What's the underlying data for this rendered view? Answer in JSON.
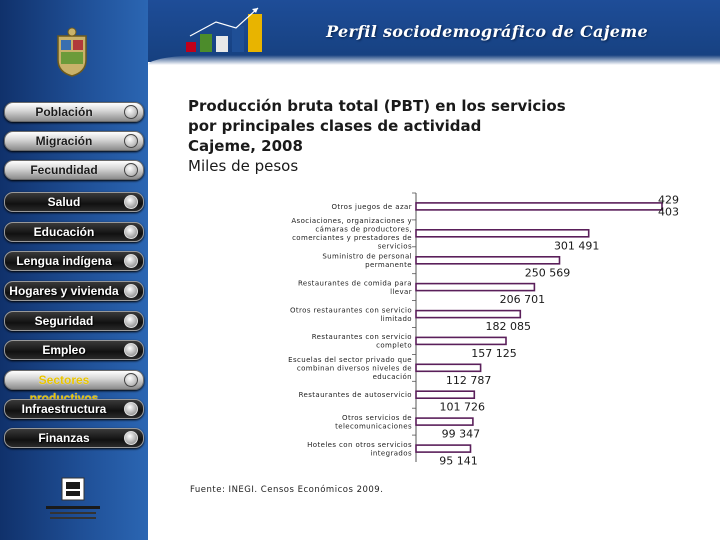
{
  "header": {
    "title": "Perfil sociodemográfico de Cajeme"
  },
  "sidebar": {
    "items": [
      {
        "label": "Población",
        "style": "light",
        "active": false
      },
      {
        "label": "Migración",
        "style": "light",
        "active": false
      },
      {
        "label": "Fecundidad",
        "style": "light",
        "active": false
      },
      {
        "label": "Salud",
        "style": "dark",
        "active": false
      },
      {
        "label": "Educación",
        "style": "dark",
        "active": false
      },
      {
        "label": "Lengua indígena",
        "style": "dark",
        "active": false
      },
      {
        "label": "Hogares y vivienda",
        "style": "dark",
        "active": false
      },
      {
        "label": "Seguridad",
        "style": "dark",
        "active": false
      },
      {
        "label": "Empleo",
        "style": "dark",
        "active": false
      },
      {
        "label": "Sectores productivos",
        "style": "light",
        "active": true
      },
      {
        "label": "Infraestructura",
        "style": "dark",
        "active": false
      },
      {
        "label": "Finanzas",
        "style": "dark",
        "active": false
      }
    ]
  },
  "colors": {
    "sidebar_blue": "#1f4f96",
    "header_blue": "#1e4d98",
    "bar_outline": "#5a1f5a",
    "active_menu_text": "#e8c400"
  },
  "chart_title_lines": [
    {
      "text": "Producción bruta total (PBT) en los servicios",
      "bold": true
    },
    {
      "text": "por principales clases de actividad",
      "bold": true
    },
    {
      "text": "Cajeme, 2008",
      "bold": true
    },
    {
      "text": "Miles de pesos",
      "bold": false
    }
  ],
  "source": "Fuente: INEGI. Censos Económicos 2009.",
  "chart_data": {
    "type": "bar",
    "orientation": "horizontal",
    "title": "Producción bruta total (PBT) en los servicios por principales clases de actividad Cajeme, 2008",
    "ylabel": "Miles de pesos",
    "categories": [
      "Otros juegos de azar",
      "Asociaciones, organizaciones y cámaras de productores, comerciantes y prestadores de servicios",
      "Suministro de personal permanente",
      "Restaurantes de comida para llevar",
      "Otros restaurantes con servicio limitado",
      "Restaurantes con servicio completo",
      "Escuelas del sector privado que combinan diversos niveles de educación",
      "Restaurantes de autoservicio",
      "Otros servicios de telecomunicaciones",
      "Hoteles con otros servicios integrados"
    ],
    "category_labels": [
      [
        "Otros juegos de azar"
      ],
      [
        "Asociaciones, organizaciones y",
        "cámaras de productores,",
        "comerciantes y prestadores de",
        "servicios"
      ],
      [
        "Suministro de personal",
        "permanente"
      ],
      [
        "Restaurantes de comida para",
        "llevar"
      ],
      [
        "Otros restaurantes con servicio",
        "limitado"
      ],
      [
        "Restaurantes con servicio",
        "completo"
      ],
      [
        "Escuelas del sector privado que",
        "combinan diversos niveles de",
        "educación"
      ],
      [
        "Restaurantes de autoservicio"
      ],
      [
        "Otros servicios de",
        "telecomunicaciones"
      ],
      [
        "Hoteles con otros servicios",
        "integrados"
      ]
    ],
    "values": [
      429403,
      301491,
      250569,
      206701,
      182085,
      157125,
      112787,
      101726,
      99347,
      95141
    ],
    "value_labels": [
      [
        "429",
        "403"
      ],
      [
        "301 491"
      ],
      [
        "250 569"
      ],
      [
        "206 701"
      ],
      [
        "182 085"
      ],
      [
        "157 125"
      ],
      [
        "112 787"
      ],
      [
        "101 726"
      ],
      [
        "99 347"
      ],
      [
        "95 141"
      ]
    ],
    "xlim": [
      0,
      429403
    ],
    "grid": false,
    "legend": "none"
  }
}
